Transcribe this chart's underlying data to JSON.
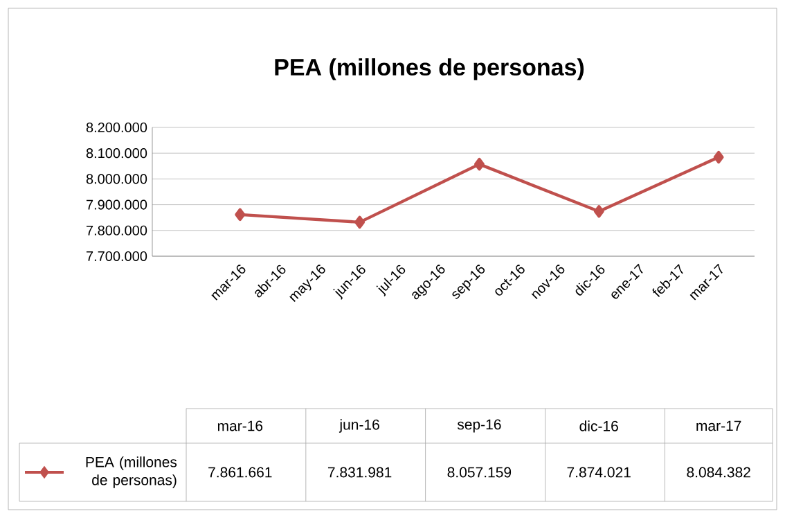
{
  "chart_data": {
    "type": "line",
    "title": "PEA (millones de personas)",
    "categories": [
      "mar-16",
      "abr-16",
      "may-16",
      "jun-16",
      "jul-16",
      "ago-16",
      "sep-16",
      "oct-16",
      "nov-16",
      "dic-16",
      "ene-17",
      "feb-17",
      "mar-17"
    ],
    "series": [
      {
        "name": "PEA (millones de personas)",
        "color": "#c0504d",
        "values": [
          7861661,
          null,
          null,
          7831981,
          null,
          null,
          8057159,
          null,
          null,
          7874021,
          null,
          null,
          8084382
        ],
        "value_labels": [
          "7.861.661",
          null,
          null,
          "7.831.981",
          null,
          null,
          "8.057.159",
          null,
          null,
          "7.874.021",
          null,
          null,
          "8.084.382"
        ]
      }
    ],
    "ylim": [
      7700000,
      8200000
    ],
    "yticks": [
      {
        "value": 7700000,
        "label": "7.700.000"
      },
      {
        "value": 7800000,
        "label": "7.800.000"
      },
      {
        "value": 7900000,
        "label": "7.900.000"
      },
      {
        "value": 8000000,
        "label": "8.000.000"
      },
      {
        "value": 8100000,
        "label": "8.100.000"
      },
      {
        "value": 8200000,
        "label": "8.200.000"
      }
    ],
    "grid": "y",
    "marker": "diamond",
    "line_style": "solid",
    "legend": "bottom"
  }
}
